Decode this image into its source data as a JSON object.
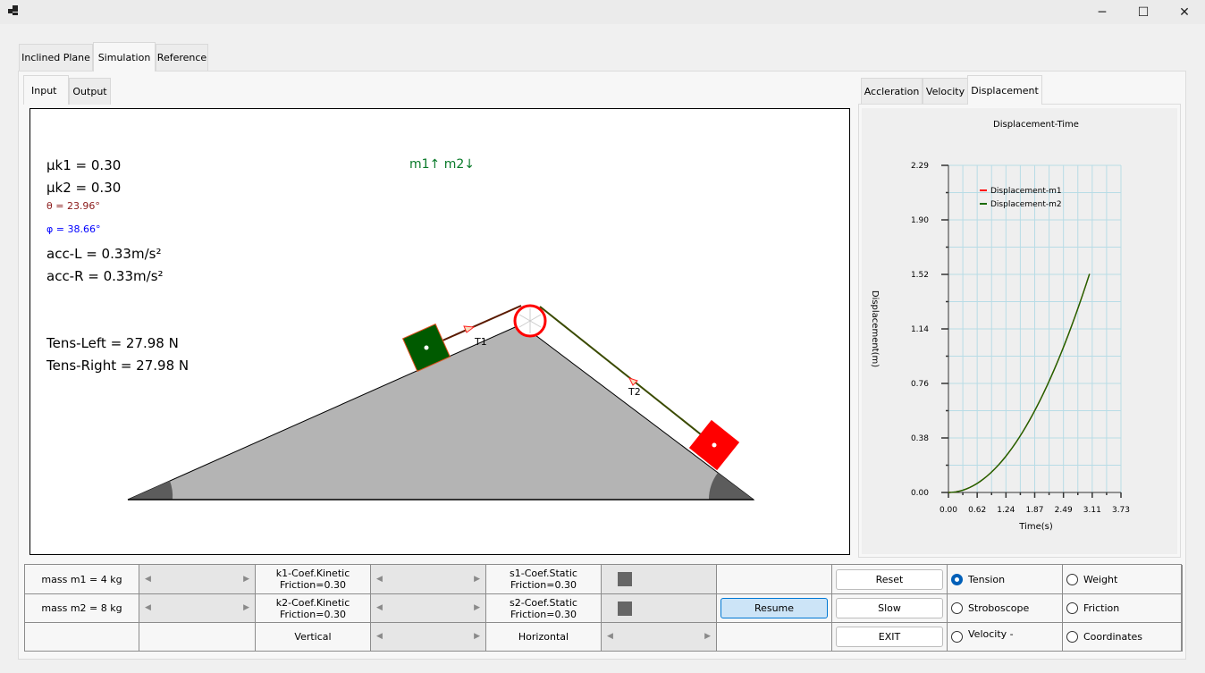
{
  "window": {
    "app_icon": "app-icon",
    "minimize": "─",
    "maximize": "☐",
    "close": "✕"
  },
  "main_tabs": [
    {
      "label": "Inclined Plane"
    },
    {
      "label": "Simulation",
      "selected": true
    },
    {
      "label": "Reference"
    }
  ],
  "sub_tabs": [
    {
      "label": "Input",
      "selected": true
    },
    {
      "label": "Output"
    }
  ],
  "chart_tabs": [
    {
      "label": "Accleration"
    },
    {
      "label": "Velocity"
    },
    {
      "label": "Displacement",
      "selected": true
    }
  ],
  "readouts": {
    "mu_k1": "μk1 = 0.30",
    "mu_k2": "μk2 = 0.30",
    "theta": "θ = 23.96°",
    "phi": "φ = 38.66°",
    "acc_l": "acc-L  = 0.33m/s²",
    "acc_r": "acc-R  = 0.33m/s²",
    "tens_left": "Tens-Left = 27.98 N",
    "tens_right": "Tens-Right = 27.98 N",
    "direction": "m1↑ m2↓",
    "t1": "T1",
    "t2": "T2"
  },
  "colors": {
    "theta": "#8b1a1a",
    "phi": "#0000ff",
    "direction": "#0a7a2a",
    "m1_block": "#005a00",
    "m2_block": "#ff0000",
    "incline": "#b4b4b4",
    "pulley": "#ff0000"
  },
  "controls": {
    "mass_m1": "mass m1 = 4 kg",
    "mass_m2": "mass m2 = 8 kg",
    "k1": "k1-Coef.Kinetic\nFriction=0.30",
    "k2": "k2-Coef.Kinetic\nFriction=0.30",
    "s1": "s1-Coef.Static\nFriction=0.30",
    "s2": "s2-Coef.Static\nFriction=0.30",
    "vertical": "Vertical",
    "horizontal": "Horizontal",
    "resume": "Resume",
    "reset": "Reset",
    "slow": "Slow",
    "exit": "EXIT",
    "radios": [
      {
        "label": "Tension",
        "checked": true
      },
      {
        "label": "Weight",
        "checked": false
      },
      {
        "label": "Stroboscope",
        "checked": false
      },
      {
        "label": "Friction",
        "checked": false
      },
      {
        "label": "Velocity -",
        "checked": false
      },
      {
        "label": "Coordinates",
        "checked": false
      }
    ]
  },
  "chart_data": {
    "type": "line",
    "title": "Displacement-Time",
    "xlabel": "Time(s)",
    "ylabel": "Displacement(m)",
    "xlim": [
      0,
      3.73
    ],
    "ylim": [
      0,
      2.29
    ],
    "xticks": [
      "0.00",
      "0.62",
      "1.24",
      "1.87",
      "2.49",
      "3.11",
      "3.73"
    ],
    "yticks": [
      "0.00",
      "0.38",
      "0.76",
      "1.14",
      "1.52",
      "1.90",
      "2.29"
    ],
    "grid": true,
    "legend": "top-left",
    "series": [
      {
        "name": "Displacement-m1",
        "color": "#ff0000",
        "x": [
          0,
          0.5,
          1.0,
          1.5,
          2.0,
          2.5,
          3.05
        ],
        "y": [
          0,
          0.04,
          0.165,
          0.37,
          0.66,
          1.03,
          1.53
        ]
      },
      {
        "name": "Displacement-m2",
        "color": "#1a6a00",
        "x": [
          0,
          0.5,
          1.0,
          1.5,
          2.0,
          2.5,
          3.05
        ],
        "y": [
          0,
          0.04,
          0.165,
          0.37,
          0.66,
          1.03,
          1.53
        ]
      }
    ]
  }
}
